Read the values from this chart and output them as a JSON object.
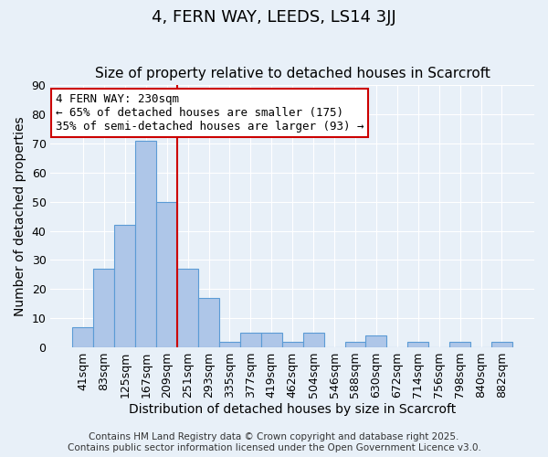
{
  "title": "4, FERN WAY, LEEDS, LS14 3JJ",
  "subtitle": "Size of property relative to detached houses in Scarcroft",
  "xlabel": "Distribution of detached houses by size in Scarcroft",
  "ylabel": "Number of detached properties",
  "bar_values": [
    7,
    27,
    42,
    71,
    50,
    27,
    17,
    2,
    5,
    5,
    2,
    5,
    0,
    2,
    4,
    0,
    2,
    0,
    2,
    0,
    2
  ],
  "bar_labels": [
    "41sqm",
    "83sqm",
    "125sqm",
    "167sqm",
    "209sqm",
    "251sqm",
    "293sqm",
    "335sqm",
    "377sqm",
    "419sqm",
    "462sqm",
    "504sqm",
    "546sqm",
    "588sqm",
    "630sqm",
    "672sqm",
    "714sqm",
    "756sqm",
    "798sqm",
    "840sqm",
    "882sqm"
  ],
  "ylim": [
    0,
    90
  ],
  "yticks": [
    0,
    10,
    20,
    30,
    40,
    50,
    60,
    70,
    80,
    90
  ],
  "bar_color": "#aec6e8",
  "bar_edge_color": "#5b9bd5",
  "background_color": "#e8f0f8",
  "grid_color": "#ffffff",
  "vline_x": 4.5,
  "vline_color": "#cc0000",
  "annotation_title": "4 FERN WAY: 230sqm",
  "annotation_line2": "← 65% of detached houses are smaller (175)",
  "annotation_line3": "35% of semi-detached houses are larger (93) →",
  "annotation_box_color": "#ffffff",
  "annotation_box_edge_color": "#cc0000",
  "footnote1": "Contains HM Land Registry data © Crown copyright and database right 2025.",
  "footnote2": "Contains public sector information licensed under the Open Government Licence v3.0.",
  "title_fontsize": 13,
  "subtitle_fontsize": 11,
  "axis_label_fontsize": 10,
  "tick_fontsize": 9,
  "annotation_fontsize": 9,
  "footnote_fontsize": 7.5
}
